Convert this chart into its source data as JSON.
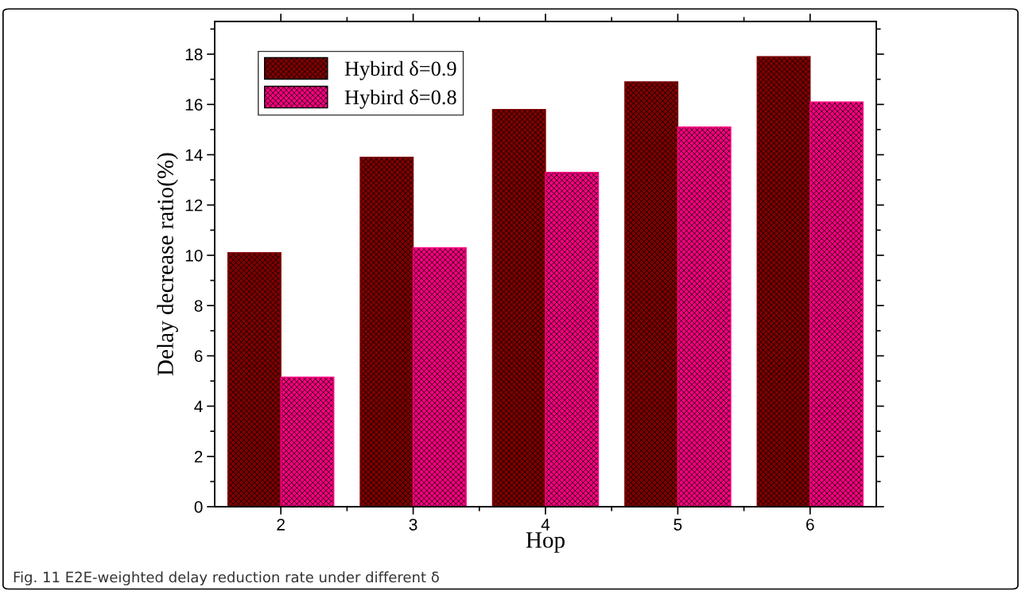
{
  "chart_data": {
    "type": "bar",
    "xlabel": "Hop",
    "ylabel": "Delay decrease ratio(%)",
    "categories": [
      "2",
      "3",
      "4",
      "5",
      "6"
    ],
    "series": [
      {
        "name": "Hybird δ=0.9",
        "color": "#800000",
        "values": [
          10.1,
          13.9,
          15.8,
          16.9,
          17.9
        ]
      },
      {
        "name": "Hybird δ=0.8",
        "color": "#ff0080",
        "values": [
          5.15,
          10.3,
          13.3,
          15.1,
          16.1
        ]
      }
    ],
    "ylim": [
      0,
      19.3
    ],
    "yticks": [
      0,
      2,
      4,
      6,
      8,
      10,
      12,
      14,
      16,
      18
    ],
    "legend": "top left",
    "grid": false,
    "annotations": [
      "Fig. 11 E2E-weighted delay reduction rate under different δ"
    ]
  }
}
